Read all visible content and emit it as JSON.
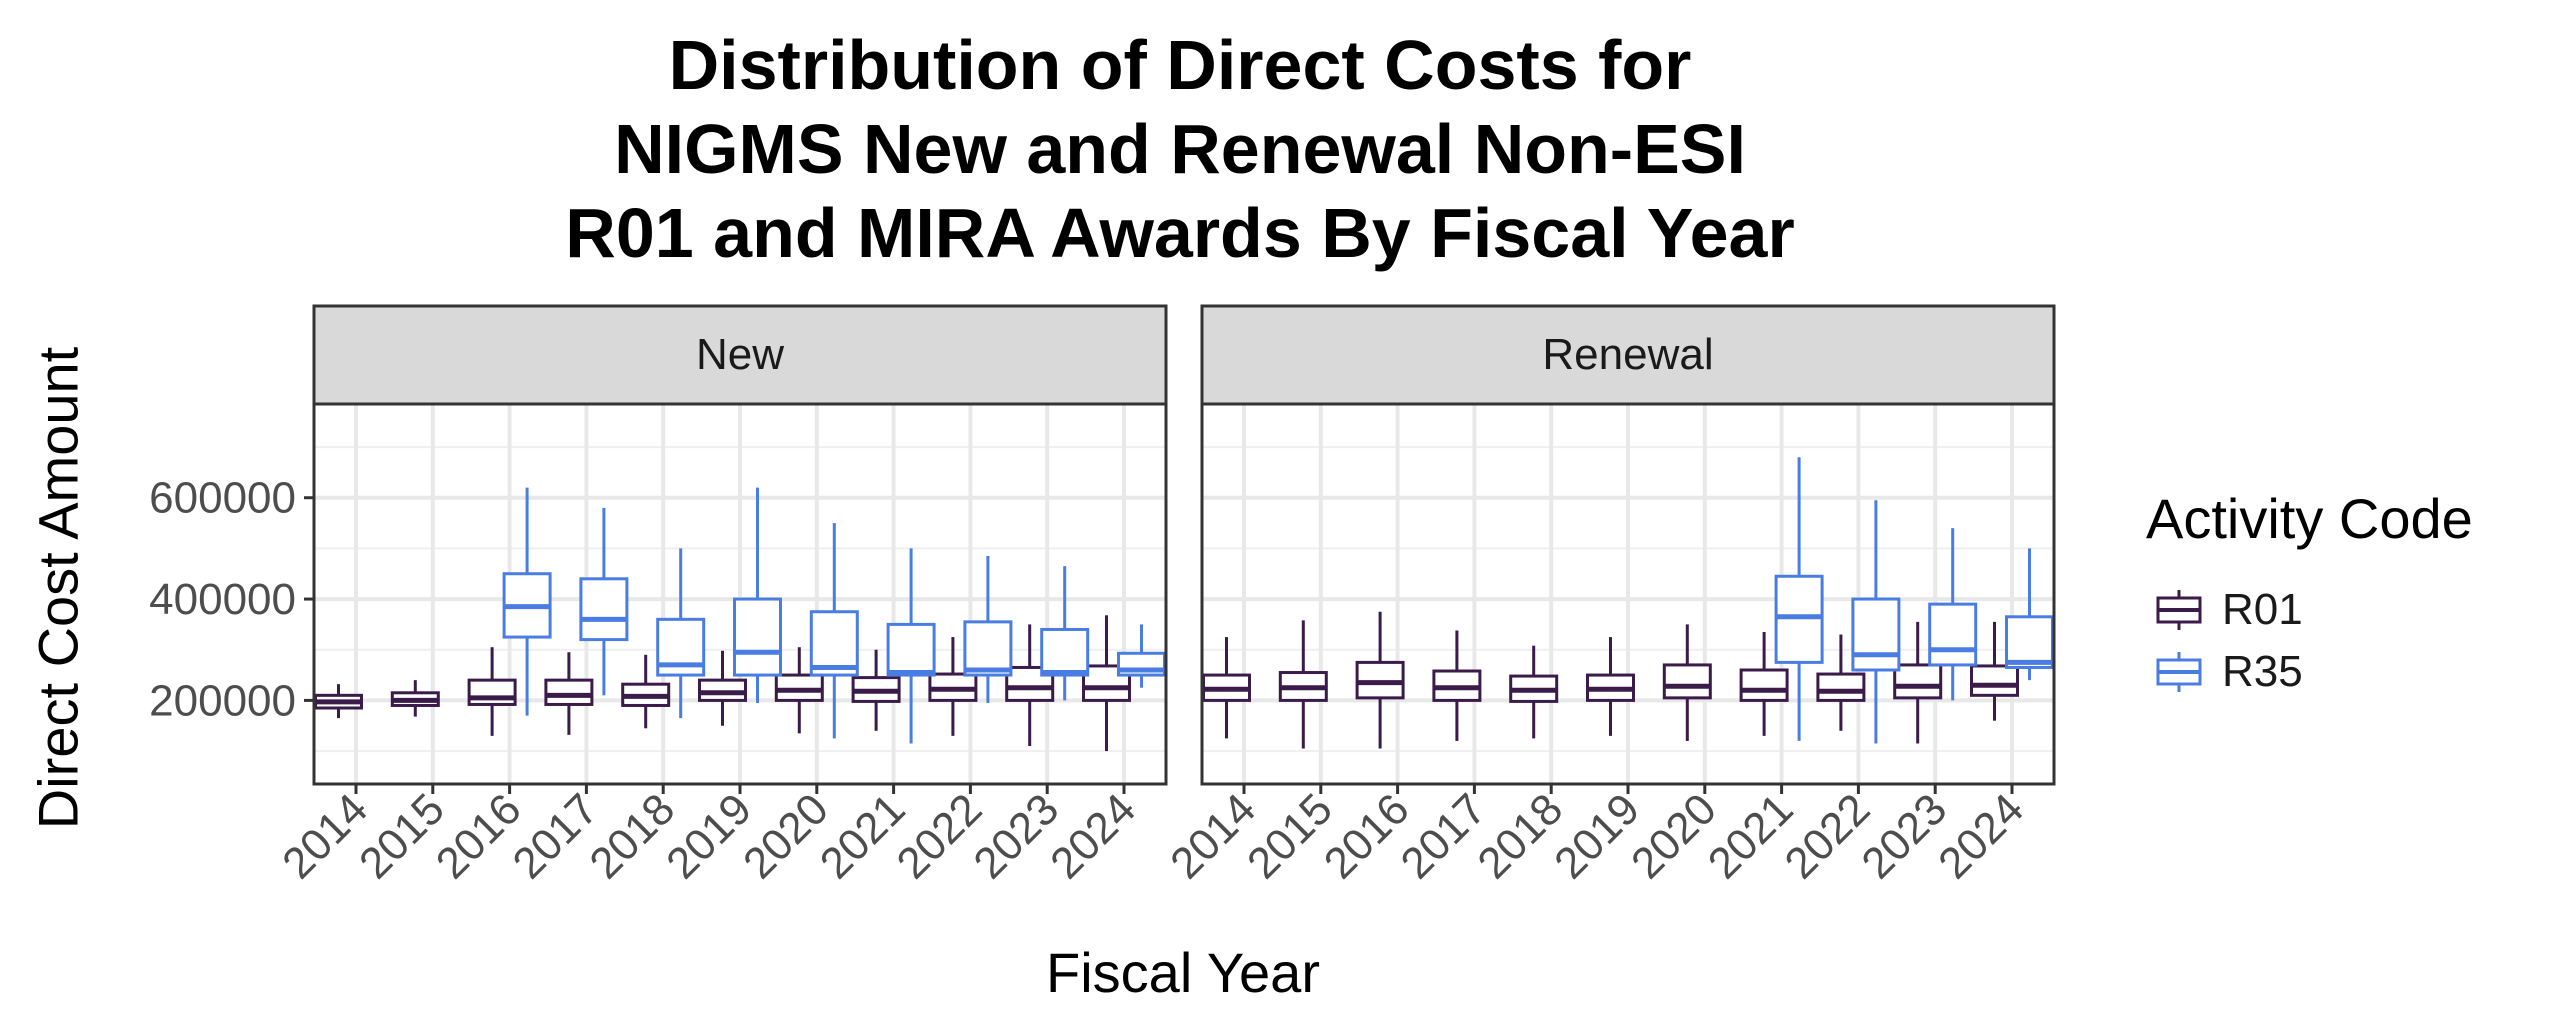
{
  "title_lines": [
    "Distribution of Direct Costs for",
    "NIGMS New and Renewal Non-ESI",
    "R01 and MIRA Awards By Fiscal Year"
  ],
  "chart_data": {
    "type": "boxplot",
    "title": "Distribution of Direct Costs for NIGMS New and Renewal Non-ESI R01 and MIRA Awards By Fiscal Year",
    "xlabel": "Fiscal Year",
    "ylabel": "Direct Cost Amount",
    "ylim": [
      35000,
      785000
    ],
    "yticks": [
      200000,
      400000,
      600000
    ],
    "ytick_labels": [
      "200000",
      "400000",
      "600000"
    ],
    "categories": [
      "2014",
      "2015",
      "2016",
      "2017",
      "2018",
      "2019",
      "2020",
      "2021",
      "2022",
      "2023",
      "2024"
    ],
    "legend": {
      "title": "Activity Code",
      "position": "right",
      "entries": [
        {
          "name": "R01",
          "color": "#3b1b4a"
        },
        {
          "name": "R35",
          "color": "#4a7de4"
        }
      ]
    },
    "panels": [
      {
        "label": "New",
        "series": [
          {
            "name": "R01",
            "boxes": [
              {
                "year": "2014",
                "min": 165000,
                "q1": 185000,
                "median": 197000,
                "q3": 210000,
                "max": 232000
              },
              {
                "year": "2015",
                "min": 168000,
                "q1": 190000,
                "median": 200000,
                "q3": 215000,
                "max": 240000
              },
              {
                "year": "2016",
                "min": 130000,
                "q1": 192000,
                "median": 205000,
                "q3": 240000,
                "max": 305000
              },
              {
                "year": "2017",
                "min": 132000,
                "q1": 192000,
                "median": 210000,
                "q3": 240000,
                "max": 295000
              },
              {
                "year": "2018",
                "min": 145000,
                "q1": 190000,
                "median": 208000,
                "q3": 232000,
                "max": 290000
              },
              {
                "year": "2019",
                "min": 150000,
                "q1": 200000,
                "median": 215000,
                "q3": 240000,
                "max": 298000
              },
              {
                "year": "2020",
                "min": 135000,
                "q1": 200000,
                "median": 220000,
                "q3": 250000,
                "max": 305000
              },
              {
                "year": "2021",
                "min": 140000,
                "q1": 198000,
                "median": 218000,
                "q3": 245000,
                "max": 300000
              },
              {
                "year": "2022",
                "min": 130000,
                "q1": 200000,
                "median": 222000,
                "q3": 252000,
                "max": 325000
              },
              {
                "year": "2023",
                "min": 110000,
                "q1": 200000,
                "median": 225000,
                "q3": 265000,
                "max": 350000
              },
              {
                "year": "2024",
                "min": 100000,
                "q1": 200000,
                "median": 225000,
                "q3": 268000,
                "max": 368000
              }
            ]
          },
          {
            "name": "R35",
            "boxes": [
              {
                "year": "2016",
                "min": 170000,
                "q1": 325000,
                "median": 385000,
                "q3": 450000,
                "max": 620000
              },
              {
                "year": "2017",
                "min": 210000,
                "q1": 320000,
                "median": 360000,
                "q3": 440000,
                "max": 580000
              },
              {
                "year": "2018",
                "min": 165000,
                "q1": 250000,
                "median": 270000,
                "q3": 360000,
                "max": 500000
              },
              {
                "year": "2019",
                "min": 195000,
                "q1": 250000,
                "median": 295000,
                "q3": 400000,
                "max": 620000
              },
              {
                "year": "2020",
                "min": 125000,
                "q1": 250000,
                "median": 265000,
                "q3": 375000,
                "max": 550000
              },
              {
                "year": "2021",
                "min": 115000,
                "q1": 250000,
                "median": 255000,
                "q3": 350000,
                "max": 500000
              },
              {
                "year": "2022",
                "min": 195000,
                "q1": 250000,
                "median": 260000,
                "q3": 355000,
                "max": 485000
              },
              {
                "year": "2023",
                "min": 200000,
                "q1": 250000,
                "median": 255000,
                "q3": 340000,
                "max": 465000
              },
              {
                "year": "2024",
                "min": 225000,
                "q1": 250000,
                "median": 260000,
                "q3": 293000,
                "max": 350000
              }
            ]
          }
        ]
      },
      {
        "label": "Renewal",
        "series": [
          {
            "name": "R01",
            "boxes": [
              {
                "year": "2014",
                "min": 125000,
                "q1": 200000,
                "median": 222000,
                "q3": 250000,
                "max": 325000
              },
              {
                "year": "2015",
                "min": 105000,
                "q1": 200000,
                "median": 225000,
                "q3": 255000,
                "max": 358000
              },
              {
                "year": "2016",
                "min": 105000,
                "q1": 205000,
                "median": 235000,
                "q3": 275000,
                "max": 375000
              },
              {
                "year": "2017",
                "min": 120000,
                "q1": 200000,
                "median": 225000,
                "q3": 258000,
                "max": 338000
              },
              {
                "year": "2018",
                "min": 125000,
                "q1": 198000,
                "median": 220000,
                "q3": 248000,
                "max": 308000
              },
              {
                "year": "2019",
                "min": 130000,
                "q1": 200000,
                "median": 222000,
                "q3": 250000,
                "max": 325000
              },
              {
                "year": "2020",
                "min": 120000,
                "q1": 205000,
                "median": 228000,
                "q3": 270000,
                "max": 350000
              },
              {
                "year": "2021",
                "min": 130000,
                "q1": 200000,
                "median": 220000,
                "q3": 260000,
                "max": 335000
              },
              {
                "year": "2022",
                "min": 140000,
                "q1": 200000,
                "median": 218000,
                "q3": 252000,
                "max": 330000
              },
              {
                "year": "2023",
                "min": 115000,
                "q1": 205000,
                "median": 228000,
                "q3": 270000,
                "max": 355000
              },
              {
                "year": "2024",
                "min": 160000,
                "q1": 210000,
                "median": 230000,
                "q3": 268000,
                "max": 355000
              }
            ]
          },
          {
            "name": "R35",
            "boxes": [
              {
                "year": "2021",
                "min": 120000,
                "q1": 275000,
                "median": 365000,
                "q3": 445000,
                "max": 680000
              },
              {
                "year": "2022",
                "min": 115000,
                "q1": 260000,
                "median": 290000,
                "q3": 400000,
                "max": 595000
              },
              {
                "year": "2023",
                "min": 200000,
                "q1": 270000,
                "median": 300000,
                "q3": 390000,
                "max": 540000
              },
              {
                "year": "2024",
                "min": 240000,
                "q1": 265000,
                "median": 275000,
                "q3": 365000,
                "max": 500000
              }
            ]
          }
        ]
      }
    ]
  }
}
